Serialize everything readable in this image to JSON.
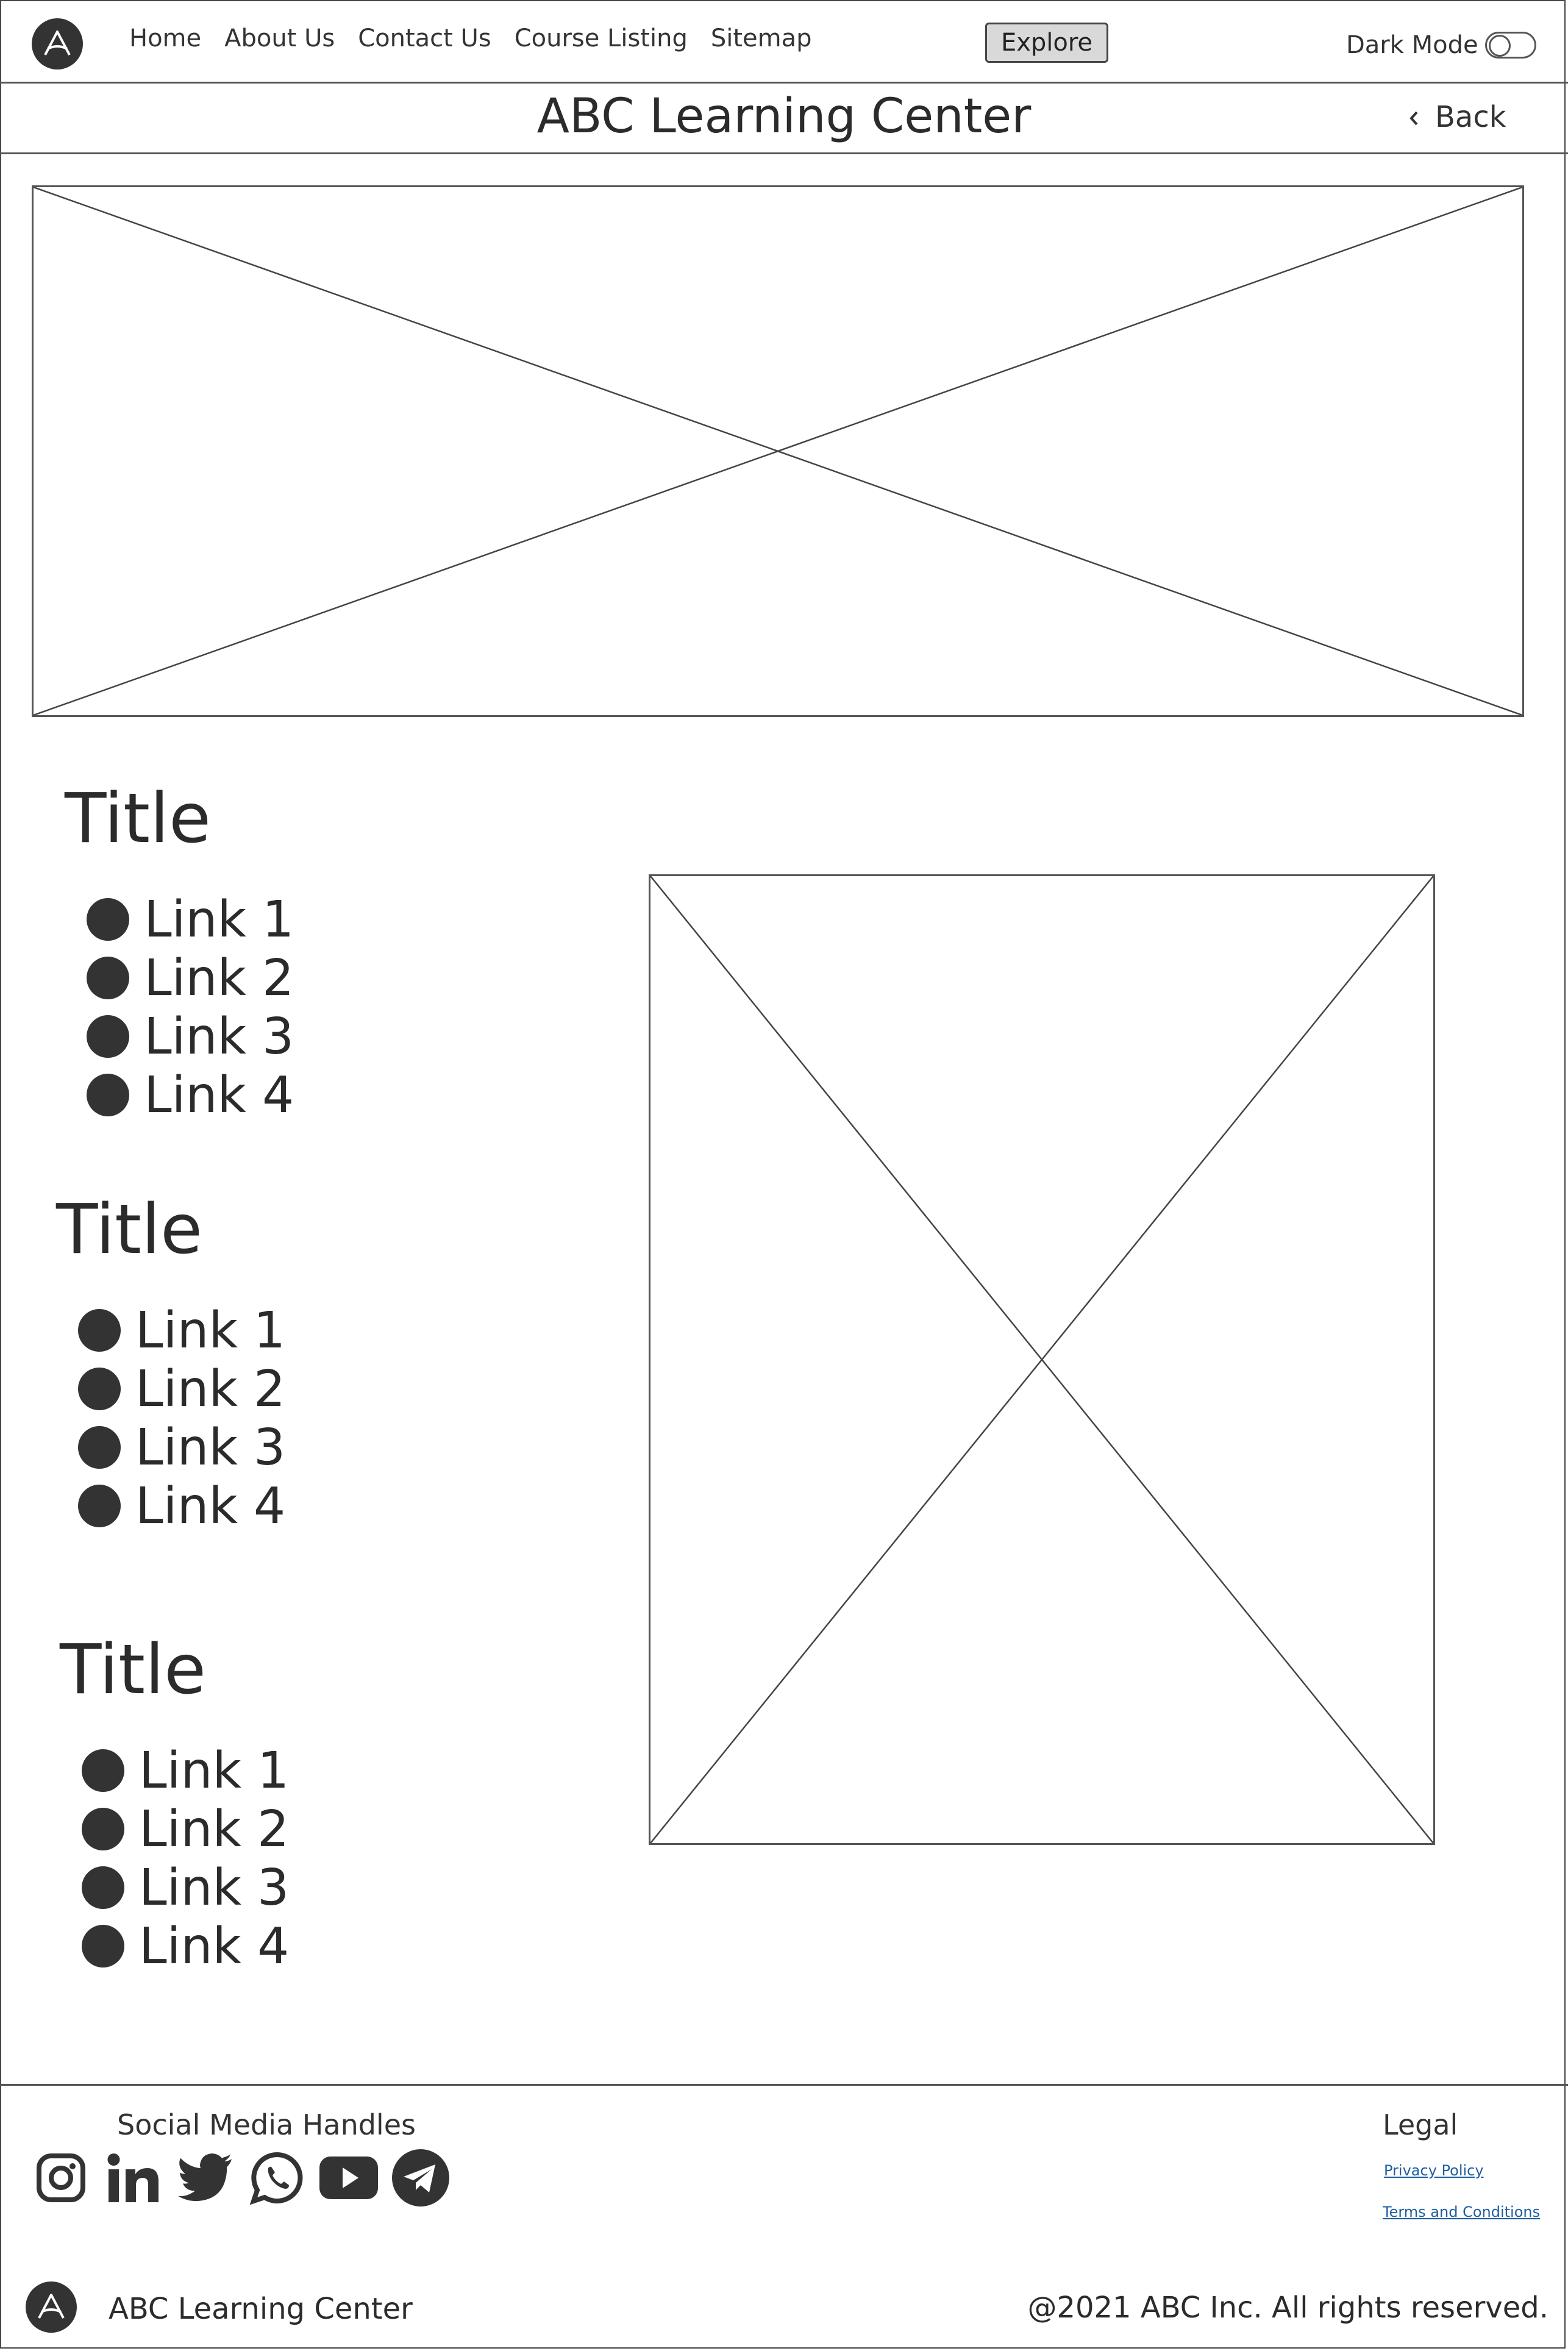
{
  "nav": {
    "items": [
      {
        "label": "Home"
      },
      {
        "label": "About Us"
      },
      {
        "label": "Contact Us"
      },
      {
        "label": "Course Listing"
      },
      {
        "label": "Sitemap"
      }
    ],
    "explore_label": "Explore",
    "dark_mode_label": "Dark Mode",
    "dark_mode_on": false
  },
  "header": {
    "title": "ABC Learning Center",
    "back_label": "Back"
  },
  "sections": [
    {
      "title": "Title",
      "links": [
        "Link 1",
        "Link 2",
        "Link 3",
        "Link 4"
      ]
    },
    {
      "title": "Title",
      "links": [
        "Link 1",
        "Link 2",
        "Link 3",
        "Link 4"
      ]
    },
    {
      "title": "Title",
      "links": [
        "Link 1",
        "Link 2",
        "Link 3",
        "Link 4"
      ]
    }
  ],
  "footer": {
    "social_heading": "Social Media Handles",
    "social_icons": [
      "instagram-icon",
      "linkedin-icon",
      "twitter-icon",
      "whatsapp-icon",
      "youtube-icon",
      "telegram-icon"
    ],
    "legal_heading": "Legal",
    "legal_links": [
      "Privacy Policy",
      "Terms and Conditions"
    ],
    "brand_name": "ABC Learning Center",
    "copyright": "@2021 ABC Inc. All rights reserved."
  },
  "colors": {
    "ink": "#2e2e2e",
    "border": "#555555",
    "button_bg": "#d9d9d9",
    "link": "#1f5fa0"
  }
}
